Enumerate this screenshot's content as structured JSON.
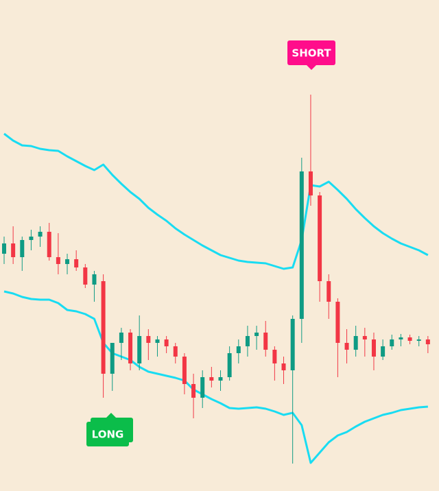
{
  "chart_data": {
    "type": "candlestick",
    "ylim": [
      0,
      716
    ],
    "up_color": "#0f9b84",
    "down_color": "#f23645",
    "open": [
      346,
      361,
      341,
      366,
      371,
      378,
      341,
      331,
      338,
      326,
      301,
      306,
      171,
      216,
      231,
      186,
      226,
      216,
      221,
      211,
      196,
      156,
      136,
      166,
      161,
      166,
      201,
      211,
      226,
      231,
      206,
      186,
      176,
      251,
      466,
      431,
      306,
      276,
      216,
      206,
      226,
      221,
      196,
      211,
      221,
      224,
      219,
      221
    ],
    "high": [
      371,
      386,
      371,
      381,
      386,
      391,
      376,
      346,
      351,
      331,
      321,
      316,
      216,
      238,
      236,
      256,
      236,
      226,
      226,
      216,
      201,
      171,
      176,
      181,
      176,
      211,
      221,
      241,
      241,
      248,
      211,
      196,
      256,
      486,
      578,
      436,
      316,
      281,
      236,
      241,
      238,
      231,
      221,
      228,
      229,
      228,
      226,
      226
    ],
    "low": [
      331,
      331,
      321,
      351,
      356,
      336,
      316,
      316,
      321,
      296,
      276,
      136,
      146,
      191,
      176,
      176,
      191,
      196,
      201,
      186,
      141,
      106,
      121,
      151,
      146,
      161,
      186,
      196,
      206,
      196,
      161,
      156,
      40,
      216,
      416,
      276,
      251,
      166,
      186,
      196,
      196,
      176,
      191,
      206,
      211,
      214,
      211,
      201
    ],
    "close": [
      361,
      341,
      366,
      371,
      378,
      341,
      331,
      338,
      326,
      301,
      316,
      171,
      216,
      231,
      186,
      226,
      216,
      221,
      211,
      196,
      156,
      136,
      166,
      161,
      166,
      201,
      211,
      226,
      231,
      206,
      186,
      176,
      251,
      466,
      431,
      306,
      276,
      216,
      206,
      226,
      221,
      196,
      211,
      221,
      224,
      219,
      221,
      214
    ],
    "bands": [
      {
        "color": "#19dcf2",
        "values": [
          521,
          511,
          504,
          503,
          499,
          497,
          496,
          488,
          481,
          474,
          468,
          476,
          461,
          448,
          436,
          426,
          413,
          403,
          394,
          383,
          374,
          366,
          358,
          351,
          344,
          340,
          336,
          334,
          333,
          332,
          328,
          324,
          326,
          366,
          446,
          444,
          451,
          439,
          426,
          411,
          398,
          386,
          376,
          368,
          361,
          356,
          351,
          344
        ]
      },
      {
        "color": "#19dcf2",
        "values": [
          291,
          288,
          283,
          280,
          279,
          279,
          274,
          264,
          262,
          258,
          251,
          216,
          201,
          196,
          191,
          181,
          174,
          171,
          168,
          165,
          161,
          148,
          141,
          134,
          128,
          121,
          120,
          121,
          122,
          120,
          116,
          111,
          114,
          96,
          41,
          56,
          71,
          81,
          86,
          94,
          101,
          106,
          111,
          114,
          118,
          120,
          122,
          123
        ]
      }
    ],
    "signals": [
      {
        "text": "SHORT",
        "color": "#ff0d8b"
      },
      {
        "text": "LONG",
        "color": "#0bbd4a"
      },
      {
        "text": "LONG",
        "color": "#0bbd4a"
      }
    ]
  }
}
